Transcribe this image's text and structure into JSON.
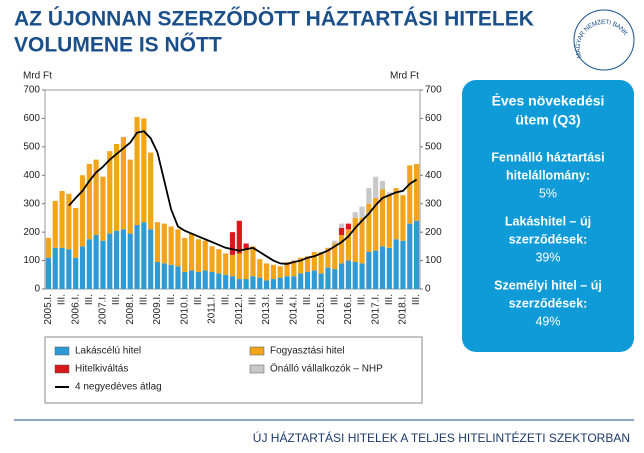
{
  "slide": {
    "title_lines": [
      "AZ ÚJONNAN SZERZŐDÖTT HÁZTARTÁSI HITELEK",
      "VOLUMENE IS NŐTT"
    ],
    "logo": "MAGYAR NEMZETI BANK",
    "footer": "ÚJ HÁZTARTÁSI HITELEK A TELJES HITELINTÉZETI SZEKTORBAN"
  },
  "info_box": {
    "heading_lines": [
      "Éves növekedési",
      "ütem (Q3)"
    ],
    "items": [
      {
        "label_lines": [
          "Fennálló háztartási",
          "hitelállomány:"
        ],
        "value": "5%"
      },
      {
        "label_lines": [
          "Lakáshitel – új",
          "szerződések:"
        ],
        "value": "39%"
      },
      {
        "label_lines": [
          "Személyi hitel – új",
          "szerződések:"
        ],
        "value": "49%"
      }
    ]
  },
  "chart_data": {
    "type": "bar",
    "stacked": true,
    "ylabel": "Mrd Ft",
    "y2label": "Mrd Ft",
    "ylim": [
      0,
      700
    ],
    "yticks": [
      0,
      100,
      200,
      300,
      400,
      500,
      600,
      700
    ],
    "y2lim": [
      0,
      700
    ],
    "y2ticks": [
      0,
      100,
      200,
      300,
      400,
      500,
      600,
      700
    ],
    "categories": [
      "2005.I.",
      null,
      "III.",
      null,
      "2006.I.",
      null,
      "III.",
      null,
      "2007.I.",
      null,
      "III.",
      null,
      "2008.I.",
      null,
      "III.",
      null,
      "2009.I.",
      null,
      "III.",
      null,
      "2010.I.",
      null,
      "III.",
      null,
      "2011.I.",
      null,
      "III.",
      null,
      "2012.I.",
      null,
      "III.",
      null,
      "2013.I.",
      null,
      "III.",
      null,
      "2014.I.",
      null,
      "III.",
      null,
      "2015.I.",
      null,
      "III.",
      null,
      "2016.I.",
      null,
      "III.",
      null,
      "2017.I.",
      null,
      "III.",
      null,
      "2018.I.",
      null,
      "III."
    ],
    "series": [
      {
        "name": "Lakáscélú hitel",
        "color": "#2f9bd5",
        "values": [
          110,
          145,
          145,
          140,
          110,
          150,
          175,
          190,
          170,
          195,
          205,
          210,
          195,
          225,
          235,
          210,
          95,
          90,
          85,
          80,
          60,
          65,
          60,
          65,
          60,
          55,
          50,
          45,
          35,
          35,
          45,
          40,
          30,
          35,
          40,
          45,
          45,
          55,
          60,
          65,
          55,
          75,
          70,
          90,
          100,
          95,
          90,
          130,
          135,
          150,
          145,
          175,
          170,
          230,
          240
        ]
      },
      {
        "name": "Fogyasztási hitel",
        "color": "#f2a51a",
        "values": [
          70,
          165,
          200,
          195,
          175,
          250,
          265,
          265,
          225,
          290,
          305,
          325,
          260,
          380,
          365,
          270,
          140,
          140,
          135,
          130,
          120,
          130,
          115,
          105,
          90,
          85,
          75,
          75,
          90,
          105,
          105,
          65,
          60,
          50,
          40,
          50,
          55,
          55,
          55,
          65,
          75,
          70,
          90,
          100,
          110,
          155,
          160,
          170,
          185,
          200,
          185,
          180,
          160,
          205,
          200
        ]
      },
      {
        "name": "Hitelkiváltás",
        "color": "#d7191c",
        "values": [
          0,
          0,
          0,
          0,
          0,
          0,
          0,
          0,
          0,
          0,
          0,
          0,
          0,
          0,
          0,
          0,
          0,
          0,
          0,
          0,
          0,
          0,
          0,
          0,
          0,
          0,
          0,
          80,
          115,
          20,
          0,
          0,
          0,
          0,
          0,
          0,
          0,
          0,
          0,
          0,
          0,
          0,
          0,
          25,
          20,
          0,
          0,
          0,
          0,
          0,
          0,
          0,
          0,
          0,
          0
        ]
      },
      {
        "name": "Önálló vállalkozók – NHP",
        "color": "#c8c8c8",
        "values": [
          0,
          0,
          0,
          0,
          0,
          0,
          0,
          0,
          0,
          0,
          0,
          0,
          0,
          0,
          0,
          0,
          0,
          0,
          0,
          0,
          0,
          0,
          0,
          0,
          0,
          0,
          0,
          0,
          0,
          0,
          0,
          0,
          0,
          0,
          0,
          0,
          0,
          0,
          0,
          0,
          0,
          0,
          10,
          15,
          0,
          20,
          40,
          55,
          75,
          30,
          10,
          0,
          0,
          0,
          0
        ]
      },
      {
        "name": "4 negyedéves átlag",
        "color": "#000000",
        "type": "line",
        "values": [
          null,
          null,
          null,
          293,
          320,
          345,
          380,
          410,
          430,
          455,
          475,
          495,
          515,
          550,
          555,
          530,
          480,
          380,
          280,
          220,
          205,
          195,
          185,
          175,
          165,
          155,
          145,
          140,
          135,
          140,
          145,
          130,
          115,
          100,
          90,
          88,
          95,
          100,
          110,
          115,
          125,
          135,
          150,
          165,
          185,
          215,
          240,
          265,
          295,
          320,
          330,
          340,
          345,
          370,
          385
        ]
      }
    ]
  }
}
